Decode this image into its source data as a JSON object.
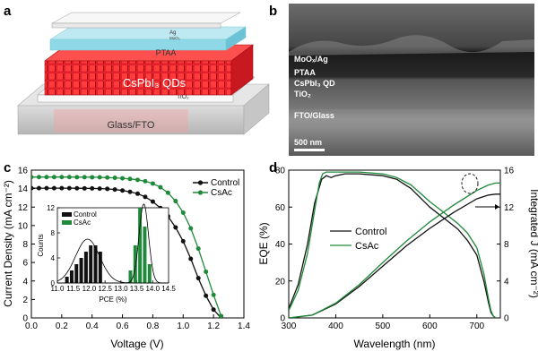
{
  "panels": {
    "a": {
      "letter": "a",
      "layers": {
        "ag": "Ag",
        "moo3": "MoO₃",
        "ptaa": "PTAA",
        "qd": "CsPbI₃ QDs",
        "tio2": "TiO₂",
        "substrate": "Glass/FTO"
      }
    },
    "b": {
      "letter": "b",
      "labels": {
        "moo": "MoOₓ/Ag",
        "ptaa": "PTAA",
        "qd": "CsPbI₃ QD",
        "tio2": "TiO₂",
        "fto": "FTO/Glass",
        "scale": "500 nm"
      }
    },
    "c": {
      "letter": "c"
    },
    "d": {
      "letter": "d"
    }
  },
  "chart_data": [
    {
      "id": "c-main",
      "type": "line",
      "xlabel": "Voltage (V)",
      "ylabel": "Current Density (mA cm⁻²)",
      "xlim": [
        0,
        1.4
      ],
      "ylim": [
        0,
        16
      ],
      "xticks": [
        "0.0",
        "0.2",
        "0.4",
        "0.6",
        "0.8",
        "1.0",
        "1.2",
        "1.4"
      ],
      "yticks": [
        "0",
        "2",
        "4",
        "6",
        "8",
        "10",
        "12",
        "14",
        "16"
      ],
      "legend": {
        "position": "top-right"
      },
      "series": [
        {
          "name": "Control",
          "color": "#111111",
          "x": [
            0.0,
            0.05,
            0.1,
            0.15,
            0.2,
            0.25,
            0.3,
            0.35,
            0.4,
            0.45,
            0.5,
            0.55,
            0.6,
            0.65,
            0.7,
            0.75,
            0.8,
            0.85,
            0.9,
            0.95,
            1.0,
            1.05,
            1.1,
            1.15,
            1.2,
            1.25
          ],
          "y": [
            14.05,
            14.05,
            14.05,
            14.05,
            14.05,
            14.05,
            14.04,
            14.03,
            14.02,
            14.0,
            13.97,
            13.9,
            13.8,
            13.65,
            13.45,
            13.1,
            12.6,
            11.9,
            11.0,
            9.8,
            8.3,
            6.4,
            4.3,
            2.4,
            0.9,
            0.0
          ]
        },
        {
          "name": "CsAc",
          "color": "#1f8a3a",
          "x": [
            0.0,
            0.05,
            0.1,
            0.15,
            0.2,
            0.25,
            0.3,
            0.35,
            0.4,
            0.45,
            0.5,
            0.55,
            0.6,
            0.65,
            0.7,
            0.75,
            0.8,
            0.85,
            0.9,
            0.95,
            1.0,
            1.05,
            1.1,
            1.15,
            1.2,
            1.25
          ],
          "y": [
            15.25,
            15.25,
            15.25,
            15.25,
            15.25,
            15.25,
            15.24,
            15.24,
            15.23,
            15.22,
            15.2,
            15.17,
            15.12,
            15.05,
            14.95,
            14.8,
            14.55,
            14.15,
            13.55,
            12.65,
            11.4,
            9.7,
            7.5,
            5.0,
            2.5,
            0.2
          ]
        }
      ]
    },
    {
      "id": "c-inset",
      "type": "bar",
      "xlabel": "PCE (%)",
      "ylabel": "Counts",
      "xlim": [
        11.0,
        14.5
      ],
      "ylim": [
        0,
        12
      ],
      "xticks": [
        "11.0",
        "11.5",
        "12.0",
        "12.5",
        "13.0",
        "13.5",
        "14.0",
        "14.5"
      ],
      "yticks": [
        "0",
        "4",
        "8",
        "12"
      ],
      "legend": {
        "position": "top-left"
      },
      "series": [
        {
          "name": "Control",
          "color": "#111111",
          "x": [
            11.3,
            11.45,
            11.6,
            11.75,
            11.9,
            12.05,
            12.2,
            12.35
          ],
          "values": [
            1,
            2,
            3,
            4,
            5,
            6,
            6,
            5
          ]
        },
        {
          "name": "CsAc",
          "color": "#1f8a3a",
          "x": [
            13.3,
            13.45,
            13.6,
            13.75,
            13.9
          ],
          "values": [
            2,
            6,
            12,
            9,
            3
          ]
        }
      ],
      "fits": [
        {
          "name": "Control fit",
          "center": 11.95,
          "sigma": 0.38,
          "peak": 7.0
        },
        {
          "name": "CsAc fit",
          "center": 13.72,
          "sigma": 0.15,
          "peak": 12.6
        }
      ]
    },
    {
      "id": "d-main",
      "type": "line",
      "xlabel": "Wavelength (nm)",
      "ylabel": "EQE (%)",
      "y2label": "Integrated J (mA cm⁻²)",
      "xlim": [
        300,
        750
      ],
      "ylim": [
        0,
        80
      ],
      "y2lim": [
        0,
        16
      ],
      "xticks": [
        "300",
        "400",
        "500",
        "600",
        "700"
      ],
      "yticks": [
        "0",
        "20",
        "40",
        "60",
        "80"
      ],
      "y2ticks": [
        "0",
        "4",
        "8",
        "12",
        "16"
      ],
      "legend": {
        "position": "center"
      },
      "series": [
        {
          "name": "Control",
          "color": "#111111",
          "axis": "left",
          "x": [
            300,
            320,
            340,
            355,
            370,
            380,
            390,
            400,
            420,
            450,
            500,
            530,
            560,
            600,
            630,
            660,
            680,
            700,
            715,
            725,
            730,
            735,
            740
          ],
          "y": [
            5,
            18,
            40,
            62,
            75,
            77,
            76,
            77,
            78,
            78,
            77,
            75,
            70,
            60,
            54,
            48,
            42,
            34,
            20,
            8,
            3,
            1,
            0
          ]
        },
        {
          "name": "CsAc",
          "color": "#1f8a3a",
          "axis": "left",
          "x": [
            300,
            320,
            340,
            355,
            365,
            372,
            380,
            400,
            420,
            450,
            500,
            530,
            560,
            600,
            630,
            660,
            680,
            700,
            715,
            725,
            730,
            735,
            740
          ],
          "y": [
            4,
            15,
            35,
            58,
            73,
            78,
            79,
            79,
            79,
            79,
            78,
            76,
            72,
            63,
            57,
            51,
            46,
            38,
            24,
            10,
            4,
            1,
            0
          ]
        },
        {
          "name": "Control integrated J",
          "color": "#111111",
          "axis": "right",
          "x": [
            300,
            350,
            400,
            450,
            500,
            550,
            600,
            650,
            700,
            725,
            740,
            750
          ],
          "y": [
            0,
            0.3,
            1.5,
            3.4,
            5.6,
            7.8,
            9.7,
            11.4,
            12.9,
            13.3,
            13.4,
            13.4
          ]
        },
        {
          "name": "CsAc integrated J",
          "color": "#1f8a3a",
          "axis": "right",
          "x": [
            300,
            350,
            400,
            450,
            500,
            550,
            600,
            650,
            700,
            725,
            740,
            750
          ],
          "y": [
            0,
            0.3,
            1.6,
            3.6,
            6.0,
            8.3,
            10.4,
            12.2,
            13.8,
            14.4,
            14.6,
            14.6
          ]
        }
      ]
    }
  ]
}
